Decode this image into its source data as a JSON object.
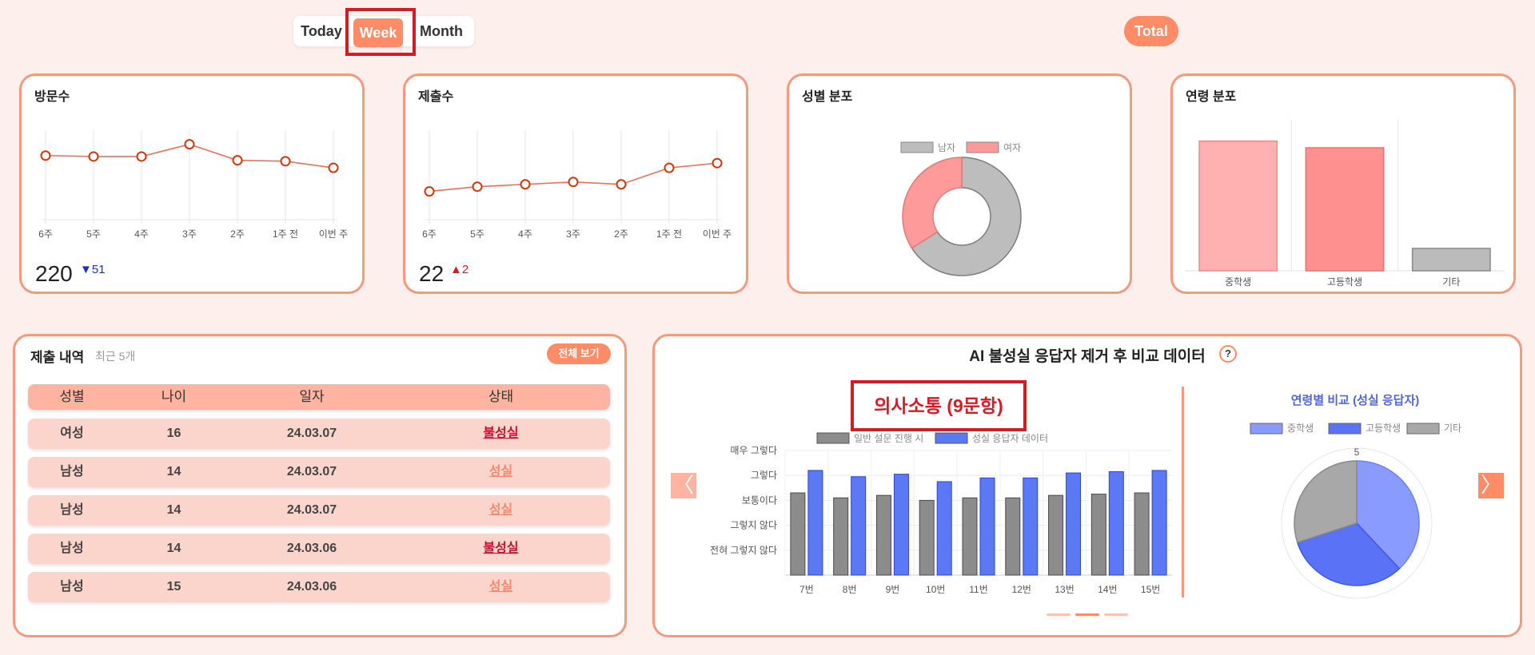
{
  "period": {
    "today": "Today",
    "week": "Week",
    "month": "Month",
    "selected": "Week"
  },
  "total_button": "Total",
  "visits": {
    "title": "방문수",
    "weeks": [
      "6주",
      "5주",
      "4주",
      "3주",
      "2주",
      "1주 전",
      "이번 주"
    ],
    "values": [
      188,
      187,
      187,
      200,
      183,
      182,
      175
    ],
    "ylim": [
      120,
      220
    ],
    "total": "220",
    "delta": "51",
    "delta_direction": "down",
    "line_color": "#e8705a",
    "point_color": "#d2350c"
  },
  "submissions": {
    "title": "제출수",
    "weeks": [
      "6주",
      "5주",
      "4주",
      "3주",
      "2주",
      "1주 전",
      "이번 주"
    ],
    "values": [
      12,
      14,
      15,
      16,
      15,
      22,
      24
    ],
    "ylim": [
      0,
      40
    ],
    "total": "22",
    "delta": "2",
    "delta_direction": "up",
    "line_color": "#e8705a",
    "point_color": "#d2350c"
  },
  "gender": {
    "title": "성별 분포",
    "legend": [
      {
        "label": "남자",
        "color": "#bdbdbd"
      },
      {
        "label": "여자",
        "color": "#ff9a9a"
      }
    ],
    "values": [
      66,
      34
    ]
  },
  "age": {
    "title": "연령 분포",
    "categories": [
      "중학생",
      "고등학생",
      "기타"
    ],
    "values": [
      116,
      110,
      20
    ],
    "colors": [
      "#ffb0b0",
      "#ff9090",
      "#bbbbbb"
    ],
    "ylim": [
      0,
      135
    ]
  },
  "history": {
    "title": "제출 내역",
    "subtitle": "최근 5개",
    "view_all": "전체 보기",
    "headers": [
      "성별",
      "나이",
      "일자",
      "상태"
    ],
    "rows": [
      {
        "gender": "여성",
        "age": "16",
        "date": "24.03.07",
        "status": "불성실",
        "good": false
      },
      {
        "gender": "남성",
        "age": "14",
        "date": "24.03.07",
        "status": "성실",
        "good": true
      },
      {
        "gender": "남성",
        "age": "14",
        "date": "24.03.07",
        "status": "성실",
        "good": true
      },
      {
        "gender": "남성",
        "age": "14",
        "date": "24.03.06",
        "status": "불성실",
        "good": false
      },
      {
        "gender": "남성",
        "age": "15",
        "date": "24.03.06",
        "status": "성실",
        "good": true
      }
    ]
  },
  "ai": {
    "title": "AI 불성실 응답자 제거 후 비교 데이터",
    "help": "?",
    "section_label": "의사소통 (9문항)",
    "bar_legend": [
      {
        "label": "일반 설문 진행 시",
        "color": "#8c8c8c"
      },
      {
        "label": "성실 응답자 데이터",
        "color": "#5b78f5"
      }
    ],
    "y_ticks": [
      "전혀 그렇지 않다",
      "그렇지 않다",
      "보통이다",
      "그렇다",
      "매우 그렇다"
    ],
    "radar_title": "연령별 비교 (성실 응답자)",
    "radar_legend": [
      {
        "label": "중학생",
        "color": "#8a9bff"
      },
      {
        "label": "고등학생",
        "color": "#5a72f5"
      },
      {
        "label": "기타",
        "color": "#a8a8a8"
      }
    ],
    "radar_values": [
      38,
      32,
      30
    ],
    "radar_max": "5",
    "prev_arrow": "〈",
    "next_arrow": "〉"
  },
  "chart_data": [
    {
      "type": "bar",
      "categories": [
        "7번",
        "8번",
        "9번",
        "10번",
        "11번",
        "12번",
        "13번",
        "14번",
        "15번"
      ],
      "series": [
        {
          "name": "일반 설문 진행 시",
          "values": [
            3.3,
            3.1,
            3.2,
            3.0,
            3.1,
            3.1,
            3.2,
            3.25,
            3.3
          ]
        },
        {
          "name": "성실 응답자 데이터",
          "values": [
            4.2,
            3.95,
            4.05,
            3.75,
            3.9,
            3.9,
            4.1,
            4.15,
            4.2
          ]
        }
      ],
      "ylim": [
        0,
        5
      ]
    }
  ]
}
